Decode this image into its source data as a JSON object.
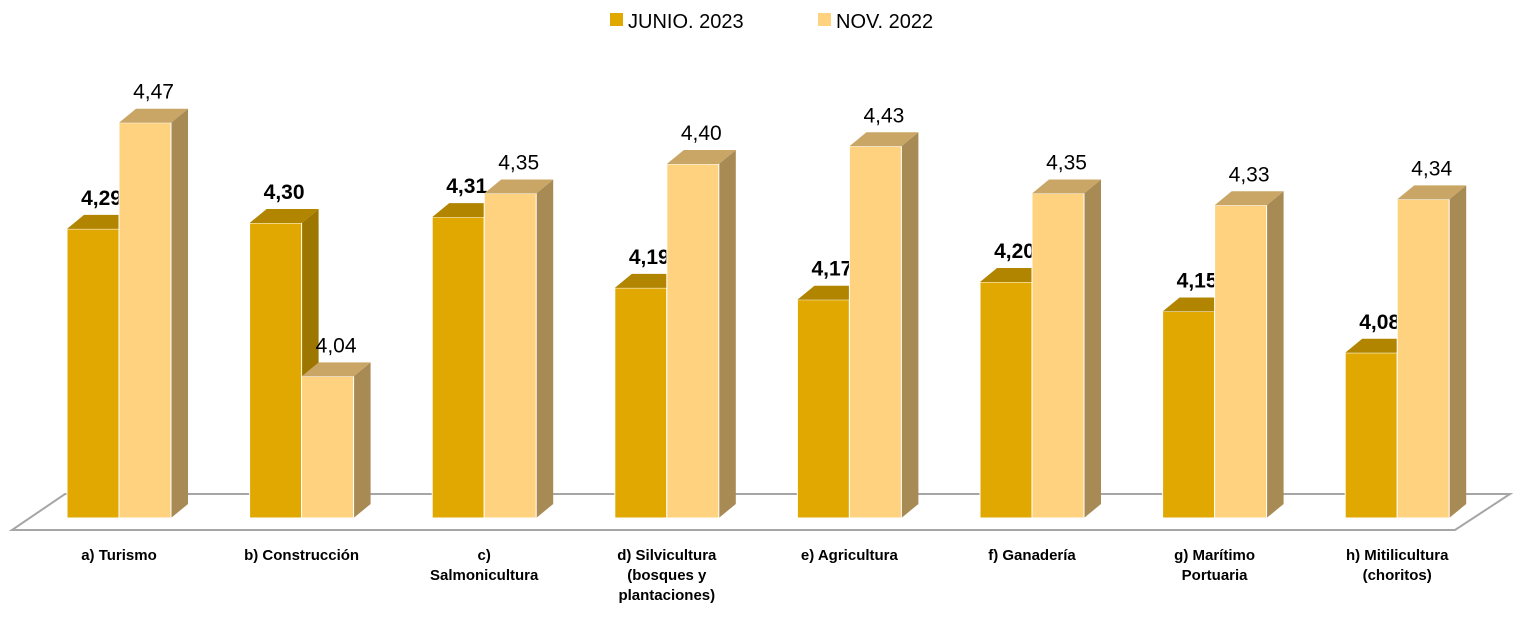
{
  "chart_data": {
    "type": "bar3d",
    "categories": [
      "a)    Turismo",
      "b)    Construcción",
      "c)\nSalmonicultura",
      "d)    Silvicultura\n(bosques y\nplantaciones)",
      "e)    Agricultura",
      "f)     Ganadería",
      "g)    Marítimo\nPortuaria",
      "h)    Mitilicultura\n(choritos)"
    ],
    "series": [
      {
        "name": "JUNIO. 2023",
        "color": "#e0a800",
        "values": [
          4.29,
          4.3,
          4.31,
          4.19,
          4.17,
          4.2,
          4.15,
          4.08
        ],
        "value_labels": [
          "4,29",
          "4,30",
          "4,31",
          "4,19",
          "4,17",
          "4,20",
          "4,15",
          "4,08"
        ]
      },
      {
        "name": "NOV. 2022",
        "color": "#ffd280",
        "values": [
          4.47,
          4.04,
          4.35,
          4.4,
          4.43,
          4.35,
          4.33,
          4.34
        ],
        "value_labels": [
          "4,47",
          "4,04",
          "4,35",
          "4,40",
          "4,43",
          "4,35",
          "4,33",
          "4,34"
        ]
      }
    ],
    "ylim": [
      3.8,
      4.6
    ],
    "legend": "top"
  }
}
